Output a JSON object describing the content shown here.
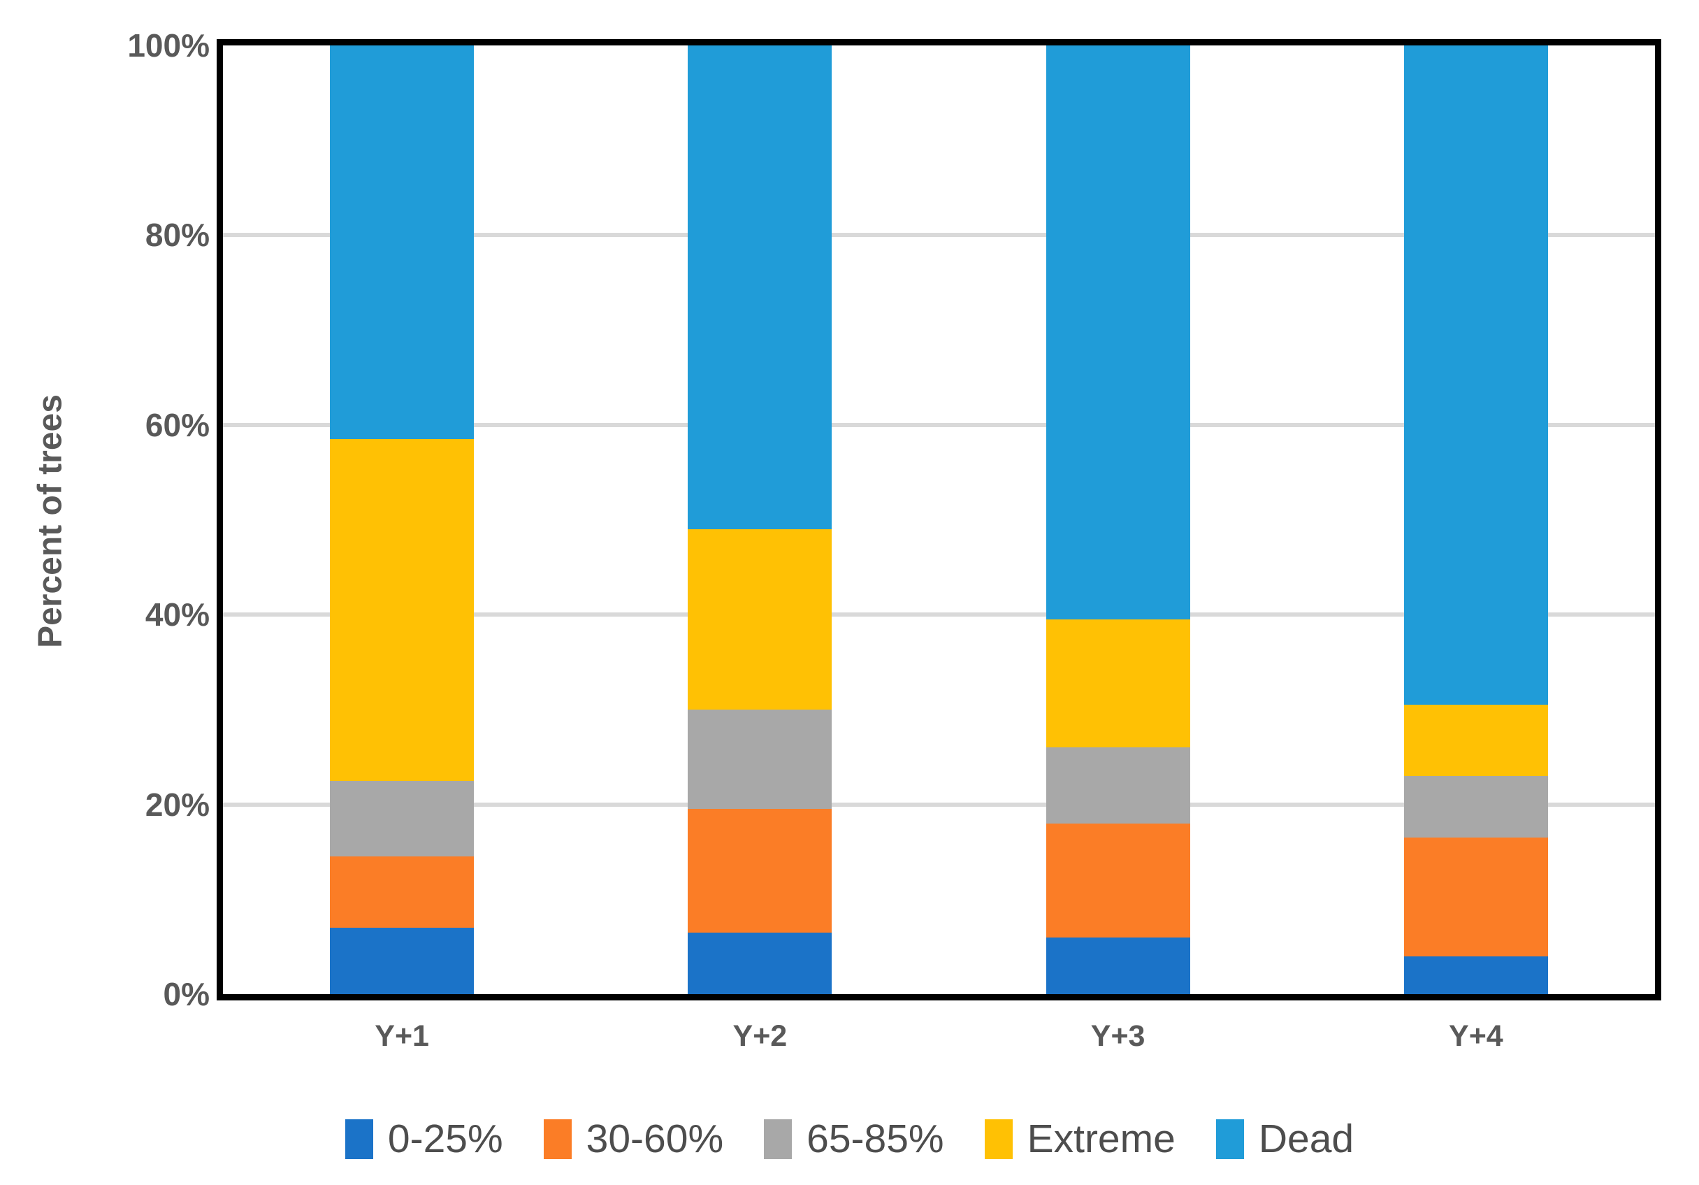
{
  "colors": {
    "series_blue": "#1B73C8",
    "series_orange": "#FB7D26",
    "series_gray": "#A8A8A8",
    "series_yellow": "#FFC104",
    "series_light_blue": "#209CD8",
    "gridline": "#D9D9D9",
    "plot_border": "#000000",
    "axis_text": "#595959",
    "legend_text": "#4D4D4D"
  },
  "chart_data": {
    "type": "bar",
    "stacked": true,
    "normalized_100_percent": true,
    "title": "",
    "xlabel": "",
    "ylabel": "Percent of trees",
    "categories": [
      "Y+1",
      "Y+2",
      "Y+3",
      "Y+4"
    ],
    "series": [
      {
        "name": "0-25%",
        "color": "#1B73C8",
        "values": [
          7,
          6.5,
          6,
          4
        ]
      },
      {
        "name": "30-60%",
        "color": "#FB7D26",
        "values": [
          7.5,
          13,
          12,
          12.5
        ]
      },
      {
        "name": "65-85%",
        "color": "#A8A8A8",
        "values": [
          8,
          10.5,
          8,
          6.5
        ]
      },
      {
        "name": "Extreme",
        "color": "#FFC104",
        "values": [
          36,
          19,
          13.5,
          7.5
        ]
      },
      {
        "name": "Dead",
        "color": "#209CD8",
        "values": [
          41.5,
          51,
          60.5,
          69.5
        ]
      }
    ],
    "ylim": [
      0,
      100
    ],
    "y_tick_values": [
      0,
      20,
      40,
      60,
      80,
      100
    ],
    "y_tick_labels": [
      "0%",
      "20%",
      "40%",
      "60%",
      "80%",
      "100%"
    ],
    "grid": true,
    "gridline_values": [
      20,
      40,
      60,
      80
    ],
    "legend_position": "bottom",
    "legend_entries": [
      "0-25%",
      "30-60%",
      "65-85%",
      "Extreme",
      "Dead"
    ]
  }
}
